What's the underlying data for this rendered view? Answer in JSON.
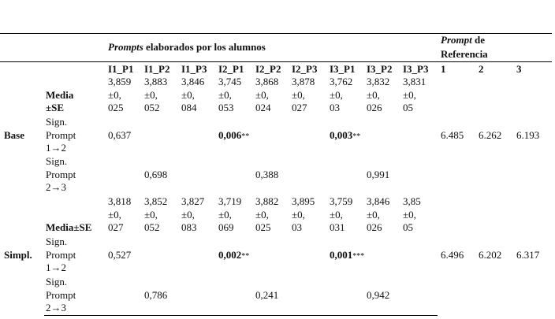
{
  "header": {
    "prompts_italic": "Prompts",
    "prompts_rest": "elaborados por los alumnos",
    "reference_italic": "Prompt",
    "reference_rest": "de",
    "reference_line2": "Referencia"
  },
  "columns": [
    "I1_P1",
    "I1_P2",
    "I1_P3",
    "I2_P1",
    "I2_P2",
    "I2_P3",
    "I3_P1",
    "I3_P2",
    "I3_P3"
  ],
  "reference_columns": [
    "1",
    "2",
    "3"
  ],
  "rows": [
    {
      "label": "Base",
      "mean_label": [
        "Media",
        "±SE"
      ],
      "means": [
        [
          "3,859",
          "±0,",
          "025"
        ],
        [
          "3,883",
          "±0,",
          "052"
        ],
        [
          "3,846",
          "±0,",
          "084"
        ],
        [
          "3,745",
          "±0,",
          "053"
        ],
        [
          "3,868",
          "±0,",
          "024"
        ],
        [
          "3,878",
          "±0,",
          "027"
        ],
        [
          "3,762",
          "±0,",
          "03"
        ],
        [
          "3,832",
          "±0,",
          "026"
        ],
        [
          "3,831",
          "±0,",
          "05"
        ]
      ],
      "sign_1_2_label": [
        "Sign.",
        "Prompt",
        "1→2"
      ],
      "sign_1_2": [
        {
          "value": "0,637"
        },
        null,
        null,
        {
          "value": "0,006",
          "stars": "**"
        },
        null,
        null,
        {
          "value": "0,003",
          "stars": "**"
        },
        null,
        null
      ],
      "sign_2_3_label": [
        "Sign.",
        "Prompt",
        "2→3"
      ],
      "sign_2_3": [
        null,
        {
          "value": "0,698"
        },
        null,
        null,
        {
          "value": "0,388"
        },
        null,
        null,
        {
          "value": "0,991"
        },
        null
      ],
      "reference": [
        6.485,
        6.262,
        6.193
      ]
    },
    {
      "label": "Simpl.",
      "mean_label": [
        "Media±SE"
      ],
      "means": [
        [
          "3,818",
          "±0,",
          "027"
        ],
        [
          "3,852",
          "±0,",
          "052"
        ],
        [
          "3,827",
          "±0,",
          "083"
        ],
        [
          "3,719",
          "±0,",
          "069"
        ],
        [
          "3,882",
          "±0,",
          "025"
        ],
        [
          "3,895",
          "±0,",
          "03"
        ],
        [
          "3,759",
          "±0,",
          "031"
        ],
        [
          "3,846",
          "±0,",
          "026"
        ],
        [
          "3,85",
          "±0,",
          "05"
        ]
      ],
      "sign_1_2_label": [
        "Sign.",
        "Prompt",
        "1→2"
      ],
      "sign_1_2": [
        {
          "value": "0,527"
        },
        null,
        null,
        {
          "value": "0,002",
          "stars": "**"
        },
        null,
        null,
        {
          "value": "0,001",
          "stars": "***"
        },
        null,
        null
      ],
      "sign_2_3_label": [
        "Sign.",
        "Prompt",
        "2→3"
      ],
      "sign_2_3": [
        null,
        {
          "value": "0,786"
        },
        null,
        null,
        {
          "value": "0,241"
        },
        null,
        null,
        {
          "value": "0,942"
        },
        null
      ],
      "reference": [
        6.496,
        6.202,
        6.317
      ]
    }
  ]
}
